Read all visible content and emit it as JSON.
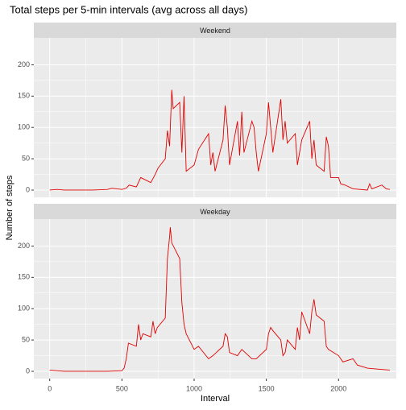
{
  "title": "Total steps per 5-min intervals (avg across all days)",
  "x_label": "Interval",
  "y_label": "Number of steps",
  "chart_data": [
    {
      "type": "line",
      "title": "Weekend",
      "color": "#e00000",
      "x": [
        0,
        50,
        100,
        200,
        300,
        400,
        430,
        500,
        530,
        550,
        600,
        630,
        700,
        730,
        750,
        800,
        815,
        830,
        845,
        855,
        900,
        915,
        930,
        945,
        1000,
        1030,
        1100,
        1115,
        1130,
        1145,
        1200,
        1215,
        1230,
        1245,
        1300,
        1315,
        1330,
        1345,
        1400,
        1415,
        1430,
        1445,
        1500,
        1515,
        1530,
        1545,
        1600,
        1615,
        1630,
        1645,
        1700,
        1715,
        1730,
        1745,
        1800,
        1815,
        1830,
        1845,
        1900,
        1915,
        1930,
        1945,
        2000,
        2015,
        2045,
        2100,
        2200,
        2215,
        2230,
        2300,
        2330,
        2355
      ],
      "values": [
        0,
        1,
        0,
        0,
        0,
        1,
        3,
        1,
        3,
        8,
        5,
        20,
        12,
        25,
        35,
        50,
        95,
        70,
        160,
        130,
        140,
        60,
        150,
        30,
        40,
        65,
        90,
        40,
        60,
        30,
        80,
        135,
        100,
        40,
        110,
        55,
        125,
        60,
        110,
        100,
        60,
        30,
        90,
        140,
        100,
        60,
        145,
        80,
        110,
        75,
        90,
        40,
        60,
        80,
        110,
        50,
        80,
        40,
        30,
        85,
        70,
        20,
        20,
        10,
        8,
        2,
        0,
        10,
        2,
        8,
        2,
        1
      ],
      "xlim": [
        -110,
        2400
      ],
      "ylim": [
        -11.6,
        243
      ],
      "xticks": [
        0,
        500,
        1000,
        1500,
        2000
      ],
      "yticks": [
        0,
        50,
        100,
        150,
        200
      ],
      "grid": true
    },
    {
      "type": "line",
      "title": "Weekday",
      "color": "#e00000",
      "x": [
        0,
        100,
        200,
        300,
        400,
        500,
        515,
        530,
        545,
        600,
        615,
        630,
        645,
        700,
        715,
        730,
        745,
        800,
        815,
        830,
        835,
        845,
        900,
        915,
        930,
        945,
        1000,
        1030,
        1100,
        1130,
        1200,
        1215,
        1230,
        1245,
        1300,
        1330,
        1400,
        1430,
        1500,
        1515,
        1530,
        1545,
        1600,
        1615,
        1630,
        1645,
        1700,
        1715,
        1730,
        1745,
        1800,
        1815,
        1830,
        1845,
        1900,
        1915,
        1930,
        2000,
        2030,
        2100,
        2130,
        2200,
        2300,
        2355
      ],
      "values": [
        2,
        0,
        0,
        0,
        0,
        1,
        5,
        20,
        45,
        40,
        75,
        50,
        60,
        55,
        80,
        60,
        70,
        85,
        180,
        215,
        230,
        205,
        180,
        110,
        75,
        60,
        35,
        40,
        20,
        25,
        40,
        60,
        55,
        30,
        25,
        35,
        20,
        20,
        35,
        60,
        70,
        65,
        50,
        25,
        30,
        50,
        35,
        70,
        50,
        95,
        60,
        95,
        115,
        90,
        80,
        40,
        35,
        25,
        15,
        20,
        10,
        5,
        3,
        2
      ],
      "xlim": [
        -110,
        2400
      ],
      "ylim": [
        -11.6,
        243
      ],
      "xticks": [
        0,
        500,
        1000,
        1500,
        2000
      ],
      "yticks": [
        0,
        50,
        100,
        150,
        200
      ],
      "grid": true
    }
  ]
}
